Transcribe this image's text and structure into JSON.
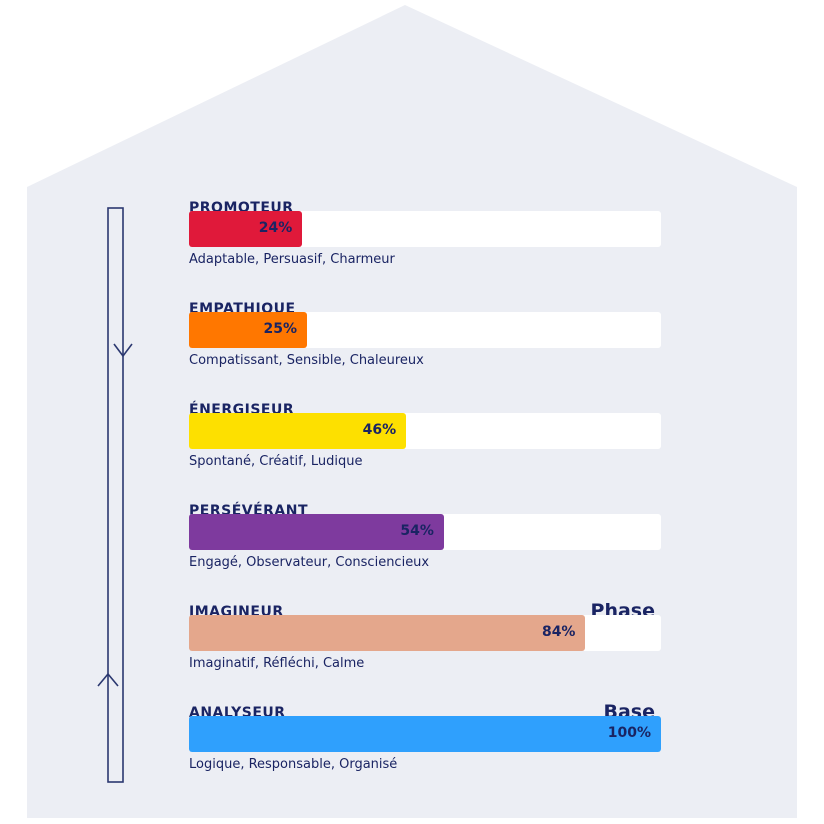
{
  "chart_data": {
    "type": "bar",
    "orientation": "horizontal",
    "xlim": [
      0,
      100
    ],
    "unit": "%",
    "background_color": "#eceef4",
    "text_color": "#1a2463",
    "categories": [
      "PROMOTEUR",
      "EMPATHIQUE",
      "ÉNERGISEUR",
      "PERSÉVÉRANT",
      "IMAGINEUR",
      "ANALYSEUR"
    ],
    "bars": [
      {
        "label": "PROMOTEUR",
        "value": 24,
        "value_label": "24%",
        "color": "#e0193a",
        "description": "Adaptable, Persuasif, Charmeur",
        "tag": ""
      },
      {
        "label": "EMPATHIQUE",
        "value": 25,
        "value_label": "25%",
        "color": "#ff7700",
        "description": "Compatissant, Sensible, Chaleureux",
        "tag": ""
      },
      {
        "label": "ÉNERGISEUR",
        "value": 46,
        "value_label": "46%",
        "color": "#fde000",
        "description": "Spontané, Créatif, Ludique",
        "tag": ""
      },
      {
        "label": "PERSÉVÉRANT",
        "value": 54,
        "value_label": "54%",
        "color": "#7e3a9e",
        "description": "Engagé, Observateur, Consciencieux",
        "tag": ""
      },
      {
        "label": "IMAGINEUR",
        "value": 84,
        "value_label": "84%",
        "color": "#e4a78c",
        "description": "Imaginatif, Réfléchi, Calme",
        "tag": "Phase"
      },
      {
        "label": "ANALYSEUR",
        "value": 100,
        "value_label": "100%",
        "color": "#2fa0fd",
        "description": "Logique, Responsable, Organisé",
        "tag": "Base"
      }
    ],
    "side_arrow_icons": [
      "arrow-down-icon",
      "arrow-up-icon"
    ]
  }
}
